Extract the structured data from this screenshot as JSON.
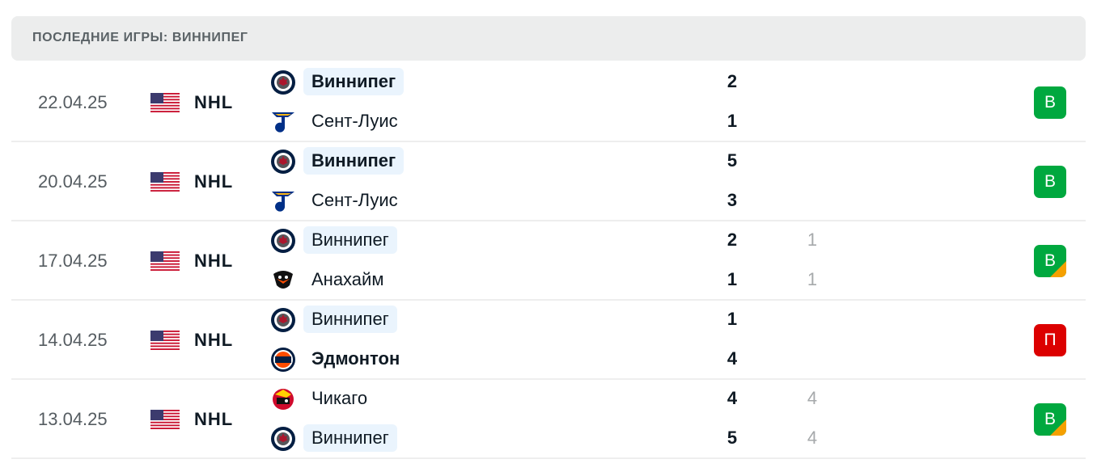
{
  "header": {
    "title": "ПОСЛЕДНИЕ ИГРЫ: ВИННИПЕГ"
  },
  "colors": {
    "win": "#00a83f",
    "loss": "#dc0000",
    "overtime": "#f5a000",
    "highlight": "#eaf4fd"
  },
  "matches": [
    {
      "date": "22.04.25",
      "flag": "us-flag-icon",
      "league": "NHL",
      "home": {
        "name": "Виннипег",
        "logo": "jets-logo",
        "score": "2",
        "ot": "",
        "bold": true,
        "highlight": true
      },
      "away": {
        "name": "Сент-Луис",
        "logo": "blues-logo",
        "score": "1",
        "ot": "",
        "bold": false,
        "highlight": false
      },
      "result": "В",
      "result_type": "win",
      "overtime": false
    },
    {
      "date": "20.04.25",
      "flag": "us-flag-icon",
      "league": "NHL",
      "home": {
        "name": "Виннипег",
        "logo": "jets-logo",
        "score": "5",
        "ot": "",
        "bold": true,
        "highlight": true
      },
      "away": {
        "name": "Сент-Луис",
        "logo": "blues-logo",
        "score": "3",
        "ot": "",
        "bold": false,
        "highlight": false
      },
      "result": "В",
      "result_type": "win",
      "overtime": false
    },
    {
      "date": "17.04.25",
      "flag": "us-flag-icon",
      "league": "NHL",
      "home": {
        "name": "Виннипег",
        "logo": "jets-logo",
        "score": "2",
        "ot": "1",
        "bold": false,
        "highlight": true
      },
      "away": {
        "name": "Анахайм",
        "logo": "ducks-logo",
        "score": "1",
        "ot": "1",
        "bold": false,
        "highlight": false
      },
      "result": "В",
      "result_type": "win",
      "overtime": true
    },
    {
      "date": "14.04.25",
      "flag": "us-flag-icon",
      "league": "NHL",
      "home": {
        "name": "Виннипег",
        "logo": "jets-logo",
        "score": "1",
        "ot": "",
        "bold": false,
        "highlight": true
      },
      "away": {
        "name": "Эдмонтон",
        "logo": "oilers-logo",
        "score": "4",
        "ot": "",
        "bold": true,
        "highlight": false
      },
      "result": "П",
      "result_type": "loss",
      "overtime": false
    },
    {
      "date": "13.04.25",
      "flag": "us-flag-icon",
      "league": "NHL",
      "home": {
        "name": "Чикаго",
        "logo": "blackhawks-logo",
        "score": "4",
        "ot": "4",
        "bold": false,
        "highlight": false
      },
      "away": {
        "name": "Виннипег",
        "logo": "jets-logo",
        "score": "5",
        "ot": "4",
        "bold": false,
        "highlight": true
      },
      "result": "В",
      "result_type": "win",
      "overtime": true
    }
  ]
}
